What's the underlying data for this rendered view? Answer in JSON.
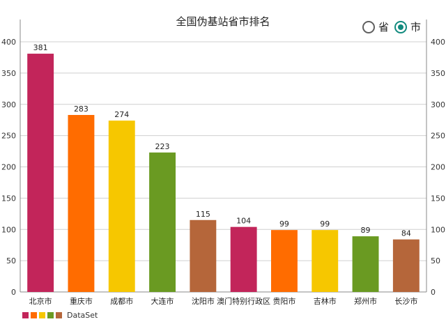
{
  "header": {
    "title": "全国伪基站省市排名"
  },
  "toggle": {
    "options": [
      {
        "label": "省",
        "selected": false
      },
      {
        "label": "市",
        "selected": true
      }
    ],
    "accent_color": "#118a7e"
  },
  "legend": {
    "label": "DataSet"
  },
  "chart_data": {
    "type": "bar",
    "title": "全国伪基站省市排名",
    "xlabel": "",
    "ylabel": "",
    "ylim": [
      0,
      400
    ],
    "yticks": [
      0,
      50,
      100,
      150,
      200,
      250,
      300,
      350,
      400
    ],
    "y_axis_both_sides": true,
    "grid": true,
    "legend_position": "bottom-left",
    "categories": [
      "北京市",
      "重庆市",
      "成都市",
      "大连市",
      "沈阳市",
      "澳门特别行政区",
      "贵阳市",
      "吉林市",
      "郑州市",
      "长沙市"
    ],
    "series": [
      {
        "name": "DataSet",
        "values": [
          381,
          283,
          274,
          223,
          115,
          104,
          99,
          99,
          89,
          84
        ]
      }
    ],
    "colors": [
      "#c2255a",
      "#ff6c00",
      "#f6c700",
      "#6a9a22",
      "#b5663a",
      "#c2255a",
      "#ff6c00",
      "#f6c700",
      "#6a9a22",
      "#b5663a"
    ],
    "legend_colors": [
      "#c2255a",
      "#ff6c00",
      "#f6c700",
      "#6a9a22",
      "#b5663a"
    ]
  }
}
